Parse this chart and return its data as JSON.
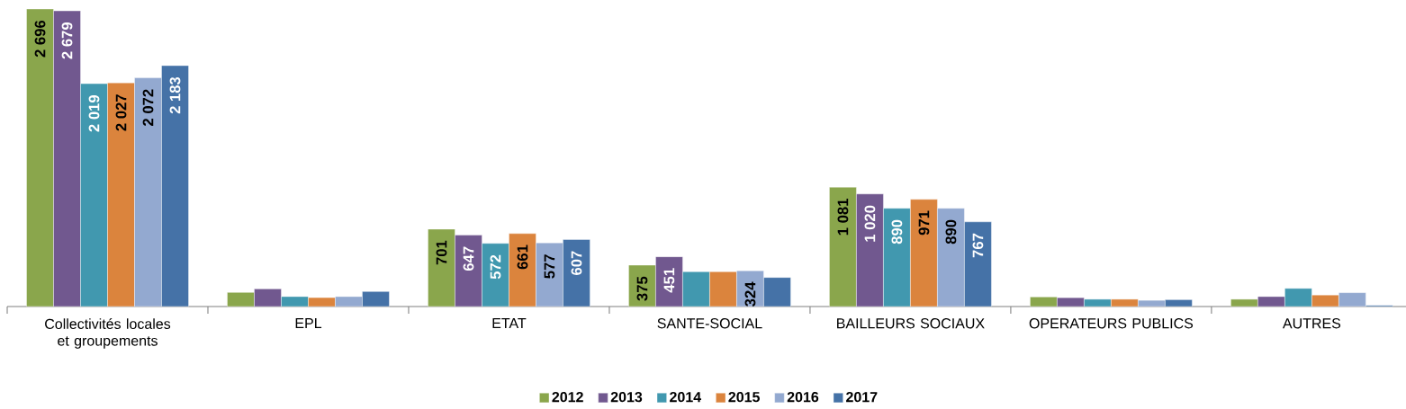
{
  "chart_data": {
    "type": "bar",
    "categories": [
      "Collectivités locales et groupements",
      "EPL",
      "ETAT",
      "SANTE-SOCIAL",
      "BAILLEURS SOCIAUX",
      "OPERATEURS PUBLICS",
      "AUTRES"
    ],
    "series": [
      {
        "name": "2012",
        "color": "#8aa64c",
        "values": [
          2696,
          128,
          701,
          375,
          1081,
          87,
          66
        ],
        "value_labels": [
          "2 696",
          null,
          "701",
          "375",
          "1 081",
          null,
          null
        ]
      },
      {
        "name": "2013",
        "color": "#71588f",
        "values": [
          2679,
          160,
          647,
          451,
          1020,
          80,
          90
        ],
        "value_labels": [
          "2 679",
          null,
          "647",
          "451",
          "1 020",
          null,
          null
        ]
      },
      {
        "name": "2014",
        "color": "#4198af",
        "values": [
          2019,
          90,
          572,
          315,
          890,
          66,
          164
        ],
        "value_labels": [
          "2 019",
          null,
          "572",
          null,
          "890",
          null,
          null
        ]
      },
      {
        "name": "2015",
        "color": "#db843d",
        "values": [
          2027,
          81,
          661,
          315,
          971,
          66,
          104
        ],
        "value_labels": [
          "2 027",
          null,
          "661",
          null,
          "971",
          null,
          null
        ]
      },
      {
        "name": "2016",
        "color": "#93a9d0",
        "values": [
          2072,
          90,
          577,
          324,
          890,
          56,
          125
        ],
        "value_labels": [
          "2 072",
          null,
          "577",
          "324",
          "890",
          null,
          null
        ]
      },
      {
        "name": "2017",
        "color": "#4572a7",
        "values": [
          2183,
          136,
          607,
          263,
          767,
          62,
          10
        ],
        "value_labels": [
          "2 183",
          null,
          "607",
          null,
          "767",
          null,
          null
        ]
      }
    ],
    "legend": "bottom"
  }
}
